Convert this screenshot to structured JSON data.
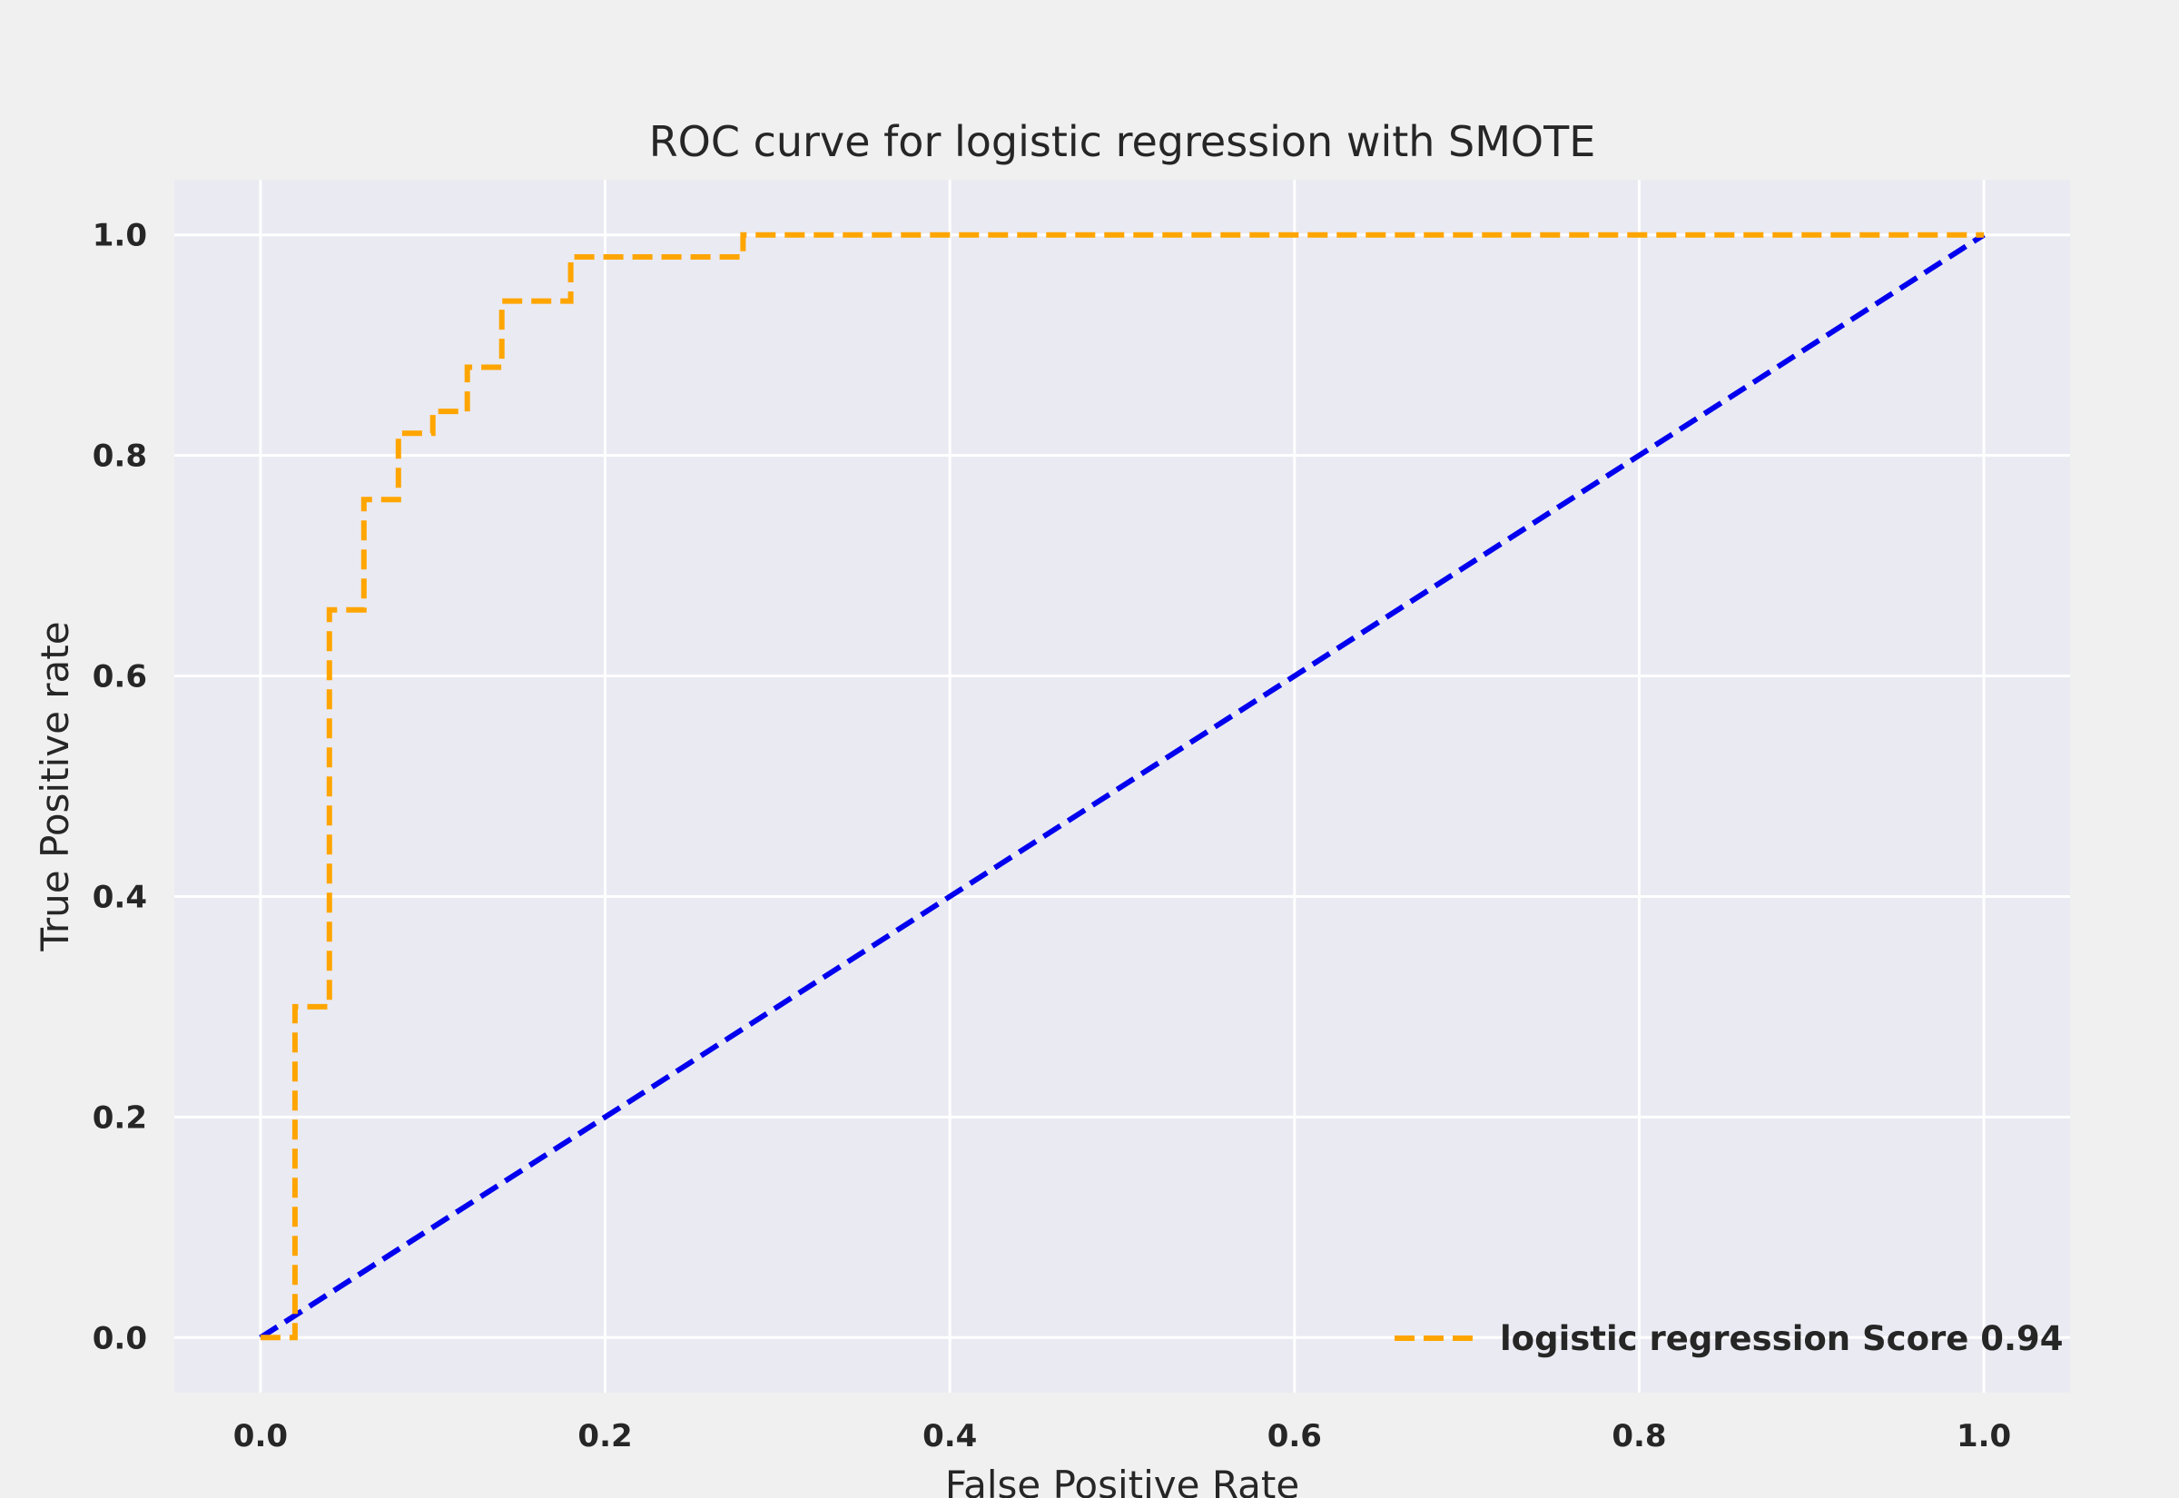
{
  "chart_data": {
    "type": "line",
    "title": "ROC curve for logistic regression with SMOTE",
    "xlabel": "False Positive Rate",
    "ylabel": "True Positive rate",
    "xlim": [
      -0.05,
      1.05
    ],
    "ylim": [
      -0.05,
      1.05
    ],
    "xticks": [
      "0.0",
      "0.2",
      "0.4",
      "0.6",
      "0.8",
      "1.0"
    ],
    "yticks": [
      "0.0",
      "0.2",
      "0.4",
      "0.6",
      "0.8",
      "1.0"
    ],
    "grid": true,
    "legend_position": "lower-right",
    "series": [
      {
        "name": "logistic regression Score 0.94",
        "color": "#FFA500",
        "style": "dashed",
        "step": true,
        "x": [
          0.0,
          0.02,
          0.02,
          0.04,
          0.04,
          0.06,
          0.06,
          0.08,
          0.08,
          0.1,
          0.1,
          0.12,
          0.12,
          0.14,
          0.14,
          0.18,
          0.18,
          0.28,
          0.28,
          1.0
        ],
        "y": [
          0.0,
          0.0,
          0.3,
          0.3,
          0.66,
          0.66,
          0.76,
          0.76,
          0.82,
          0.82,
          0.84,
          0.84,
          0.88,
          0.88,
          0.94,
          0.94,
          0.98,
          0.98,
          1.0,
          1.0
        ]
      },
      {
        "color": "#0000EE",
        "style": "dashed",
        "x": [
          0.0,
          1.0
        ],
        "y": [
          0.0,
          1.0
        ]
      }
    ]
  }
}
